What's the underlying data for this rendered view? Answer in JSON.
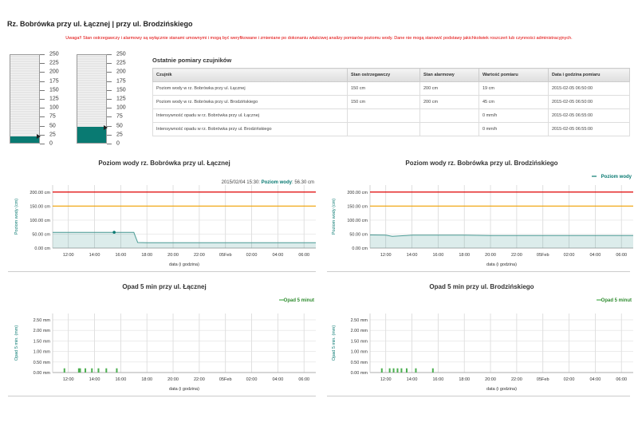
{
  "page": {
    "title": "Rz. Bobrówka przy ul. Łącznej | przy ul. Brodzińskiego",
    "warning": "Uwaga!! Stan ostrzegawczy i alarmowy są wyłącznie stanami umownymi i mogą być weryfikowane i zmieniane po dokonaniu właściwej analizy pomiarów poziomu wody. Dane nie mogą stanowić podstawy jakichkolwiek roszczeń lub czynności administracyjnych."
  },
  "gauges": [
    {
      "level_cm": 19,
      "ticks": [
        "250",
        "225",
        "200",
        "175",
        "150",
        "125",
        "100",
        "75",
        "50",
        "25",
        "0"
      ]
    },
    {
      "level_cm": 45,
      "ticks": [
        "250",
        "225",
        "200",
        "175",
        "150",
        "125",
        "100",
        "75",
        "50",
        "25",
        "0"
      ]
    }
  ],
  "colors": {
    "teal": "#097a72",
    "alarm": "#e00000",
    "warning": "#f0a000",
    "bar_green": "#4caf50"
  },
  "table": {
    "title": "Ostatnie pomiary czujników",
    "headers": [
      "Czujnik",
      "Stan ostrzegawczy",
      "Stan alarmowy",
      "Wartość pomiaru",
      "Data i godzina pomiaru"
    ],
    "rows": [
      [
        "Poziom wody w rz. Bobrówka przy ul. Łącznej",
        "150 cm",
        "200 cm",
        "19 cm",
        "2015-02-05 06:50:00"
      ],
      [
        "Poziom wody w rz. Bobrówka przy ul. Brodzińskiego",
        "150 cm",
        "200 cm",
        "45 cm",
        "2015-02-05 06:50:00"
      ],
      [
        "Intensywność opadu w rz. Bobrówka przy ul. Łącznej",
        "",
        "",
        "0 mm/h",
        "2015-02-05 06:55:00"
      ],
      [
        "Intensywność opadu w rz. Bobrówka przy ul. Brodzińskiego",
        "",
        "",
        "0 mm/h",
        "2015-02-05 06:55:00"
      ]
    ]
  },
  "chart_data": [
    {
      "type": "area",
      "title": "Poziom wody rz. Bobrówka przy ul. Łącznej",
      "xlabel": "data (i godzina)",
      "ylabel": "Poziom wody (cm)",
      "x_ticks": [
        "12:00",
        "14:00",
        "16:00",
        "18:00",
        "20:00",
        "22:00",
        "05Feb",
        "02:00",
        "04:00",
        "06:00"
      ],
      "y_ticks": [
        "0.00 cm",
        "50.00 cm",
        "100.00 cm",
        "150.00 cm",
        "200.00 cm"
      ],
      "ylim": [
        0,
        225
      ],
      "xlim_hours": [
        10.8,
        30.9
      ],
      "warning_level": 150,
      "alarm_level": 200,
      "series": [
        {
          "x_hours": [
            10.8,
            12,
            14,
            15.5,
            17.0,
            17.3,
            18,
            20,
            22,
            24,
            26,
            28,
            30.9
          ],
          "values": [
            56,
            56,
            56,
            56.3,
            56,
            20,
            19,
            19,
            19,
            19,
            19,
            19,
            19
          ]
        }
      ],
      "tooltip": {
        "date": "2015/02/04 15:30:",
        "series": "Poziom wody",
        "value": "56.30 cm",
        "x_hours": 15.5,
        "y": 56.3
      }
    },
    {
      "type": "area",
      "title": "Poziom wody rz. Bobrówka przy ul. Brodzińskiego",
      "xlabel": "data (i godzina)",
      "ylabel": "Poziom wody (cm)",
      "legend": "Poziom wody",
      "x_ticks": [
        "12:00",
        "14:00",
        "16:00",
        "18:00",
        "20:00",
        "22:00",
        "05Feb",
        "02:00",
        "04:00",
        "06:00"
      ],
      "y_ticks": [
        "0.00 cm",
        "50.00 cm",
        "100.00 cm",
        "150.00 cm",
        "200.00 cm"
      ],
      "ylim": [
        0,
        225
      ],
      "xlim_hours": [
        10.8,
        30.9
      ],
      "warning_level": 150,
      "alarm_level": 200,
      "series": [
        {
          "name": "Poziom wody",
          "x_hours": [
            10.8,
            12,
            12.5,
            14,
            16,
            18,
            20,
            22,
            24,
            26,
            28,
            30.9
          ],
          "values": [
            47,
            46,
            42,
            46,
            46,
            46,
            45,
            45,
            45,
            45,
            45,
            45
          ]
        }
      ]
    },
    {
      "type": "bar",
      "title": "Opad 5 min przy ul. Łącznej",
      "xlabel": "data (i godzina)",
      "ylabel": "Opad 5 min. (mm)",
      "legend": "Opad 5 minut",
      "x_ticks": [
        "12:00",
        "14:00",
        "16:00",
        "18:00",
        "20:00",
        "22:00",
        "05Feb",
        "02:00",
        "04:00",
        "06:00"
      ],
      "y_ticks": [
        "0.00 mm",
        "0.50 mm",
        "1.00 mm",
        "1.50 mm",
        "2.00 mm",
        "2.50 mm"
      ],
      "ylim": [
        0,
        2.8
      ],
      "xlim_hours": [
        10.8,
        30.9
      ],
      "series": [
        {
          "name": "Opad 5 minut",
          "x_hours": [
            11.7,
            12.8,
            12.9,
            13.3,
            13.8,
            14.3,
            14.9,
            15.7
          ],
          "values": [
            0.2,
            0.2,
            0.2,
            0.2,
            0.2,
            0.2,
            0.2,
            0.2
          ]
        }
      ]
    },
    {
      "type": "bar",
      "title": "Opad 5 min przy ul. Brodzińskiego",
      "xlabel": "data (i godzina)",
      "ylabel": "Opad 5 min. (mm)",
      "legend": "Opad 5 minut",
      "x_ticks": [
        "12:00",
        "14:00",
        "16:00",
        "18:00",
        "20:00",
        "22:00",
        "05Feb",
        "02:00",
        "04:00",
        "06:00"
      ],
      "y_ticks": [
        "0.00 mm",
        "0.50 mm",
        "1.00 mm",
        "1.50 mm",
        "2.00 mm",
        "2.50 mm"
      ],
      "ylim": [
        0,
        2.8
      ],
      "xlim_hours": [
        10.8,
        30.9
      ],
      "series": [
        {
          "name": "Opad 5 minut",
          "x_hours": [
            11.7,
            12.3,
            12.6,
            12.9,
            13.2,
            13.6,
            14.3,
            15.6
          ],
          "values": [
            0.2,
            0.2,
            0.2,
            0.2,
            0.2,
            0.2,
            0.2,
            0.2
          ]
        }
      ]
    }
  ]
}
